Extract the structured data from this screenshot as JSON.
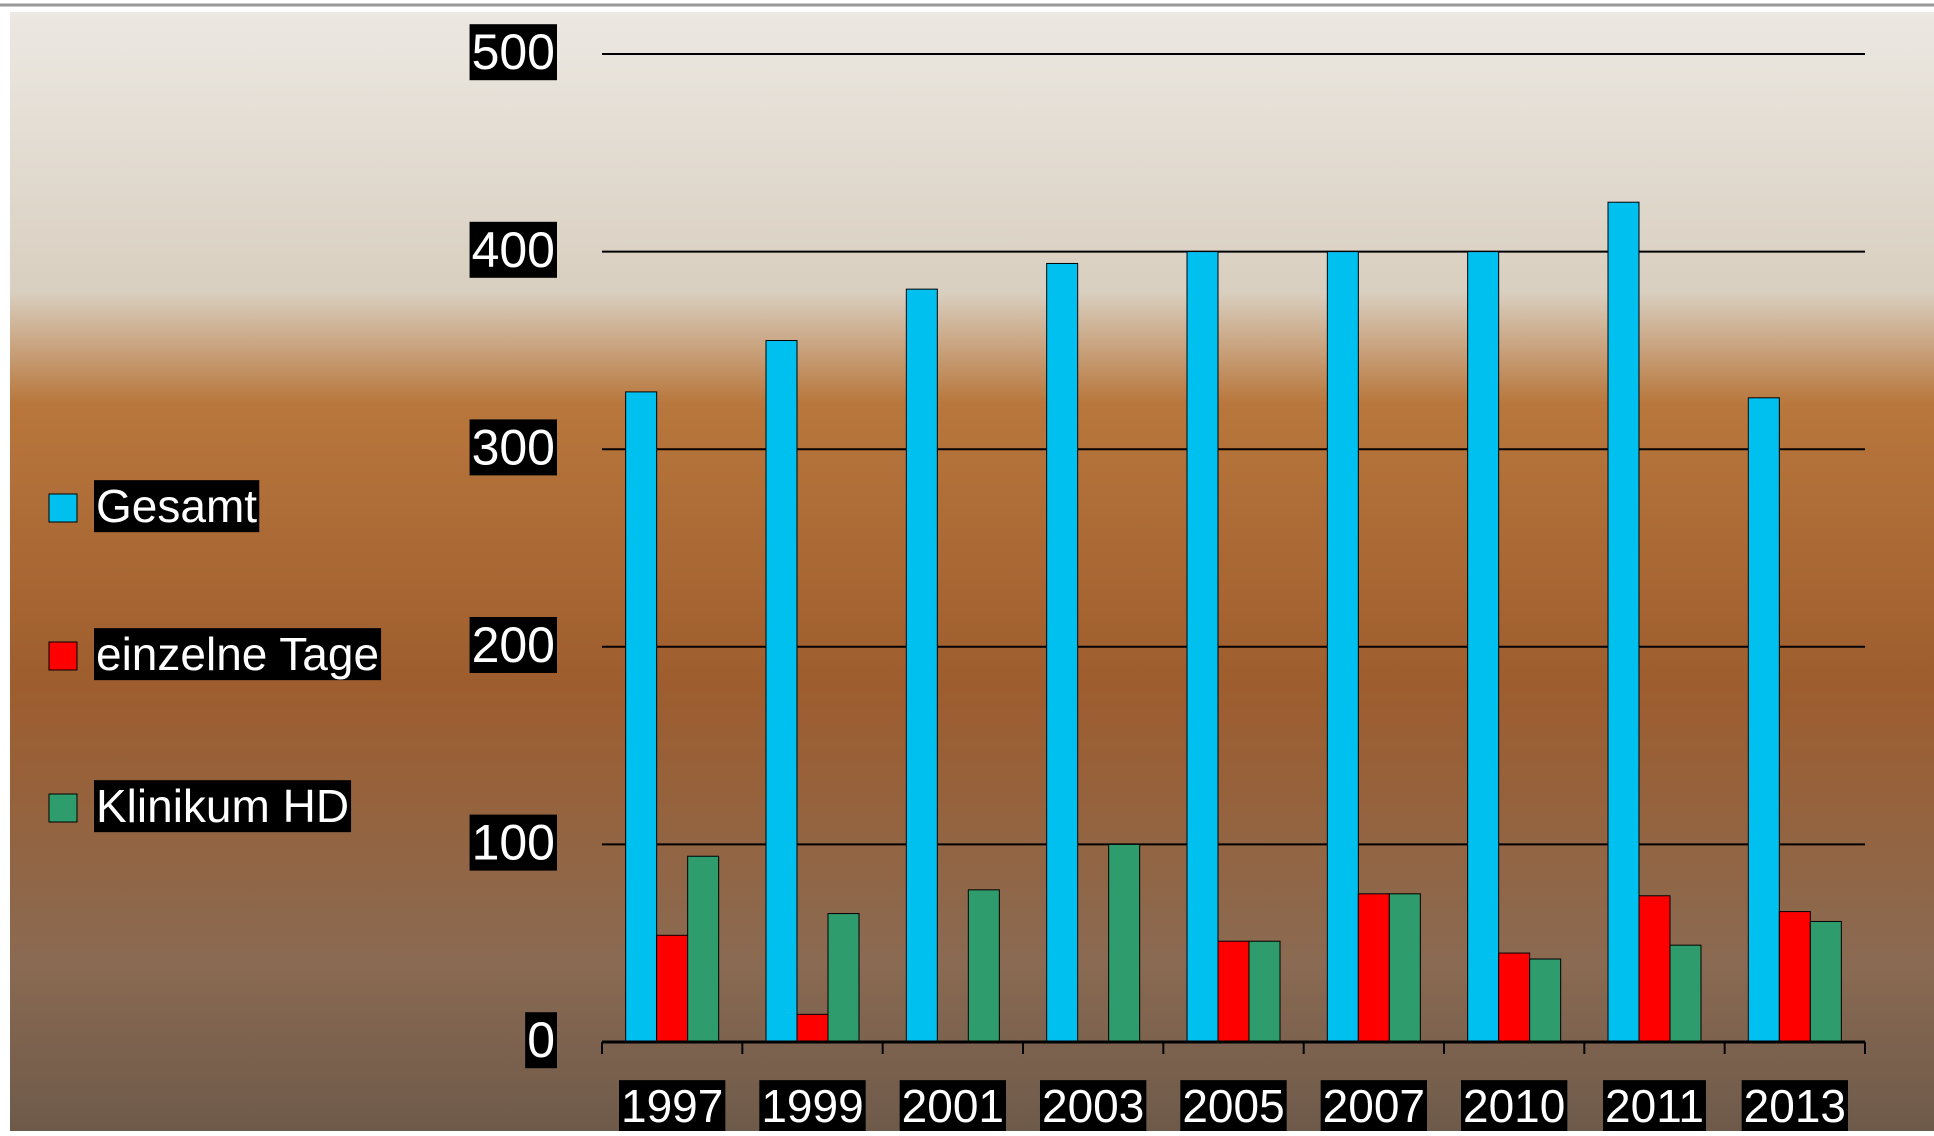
{
  "chart_data": {
    "type": "bar",
    "categories": [
      "1997",
      "1999",
      "2001",
      "2003",
      "2005",
      "2007",
      "2010",
      "2011",
      "2013"
    ],
    "series": [
      {
        "name": "Gesamt",
        "color": "#00c0f0",
        "values": [
          329,
          355,
          381,
          394,
          400,
          400,
          400,
          425,
          326
        ]
      },
      {
        "name": "einzelne Tage",
        "color": "#ff0000",
        "values": [
          54,
          14,
          null,
          null,
          51,
          75,
          45,
          74,
          66
        ]
      },
      {
        "name": "Klinikum HD",
        "color": "#2e9c6c",
        "values": [
          94,
          65,
          77,
          100,
          51,
          75,
          42,
          49,
          61
        ]
      }
    ],
    "ylim": [
      0,
      500
    ],
    "yticks": [
      0,
      100,
      200,
      300,
      400,
      500
    ],
    "grid": true,
    "legend": "left"
  }
}
